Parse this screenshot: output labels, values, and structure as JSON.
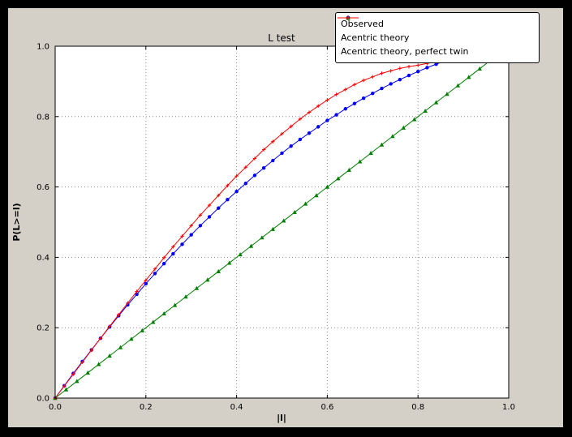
{
  "window": {
    "background_color": "#000000",
    "figure_background_color": "#d4d0c8",
    "plot_background_color": "#ffffff",
    "gridline_color": "#8f8f8f"
  },
  "chart_data": {
    "type": "line",
    "title": "L test",
    "xlabel": "|l|",
    "ylabel": "P(L>=l)",
    "xlim": [
      0,
      1
    ],
    "ylim": [
      0,
      1
    ],
    "xticks": [
      "0.0",
      "0.2",
      "0.4",
      "0.6",
      "0.8",
      "1.0"
    ],
    "yticks": [
      "0.0",
      "0.2",
      "0.4",
      "0.6",
      "0.8",
      "1.0"
    ],
    "grid": true,
    "grid_style": "dotted",
    "legend_position": "top-right",
    "series": [
      {
        "name": "Observed",
        "color": "#0000ff",
        "marker": "circle",
        "x": [
          0,
          0.02,
          0.04,
          0.06,
          0.08,
          0.1,
          0.12,
          0.14,
          0.16,
          0.18,
          0.2,
          0.22,
          0.24,
          0.26,
          0.28,
          0.3,
          0.32,
          0.34,
          0.36,
          0.38,
          0.4,
          0.42,
          0.44,
          0.46,
          0.48,
          0.5,
          0.52,
          0.54,
          0.56,
          0.58,
          0.6,
          0.62,
          0.64,
          0.66,
          0.68,
          0.7,
          0.72,
          0.74,
          0.76,
          0.78,
          0.8,
          0.82,
          0.84,
          0.86
        ],
        "y": [
          0,
          0.035,
          0.07,
          0.104,
          0.137,
          0.17,
          0.202,
          0.234,
          0.265,
          0.295,
          0.325,
          0.354,
          0.382,
          0.41,
          0.437,
          0.464,
          0.49,
          0.515,
          0.54,
          0.564,
          0.587,
          0.61,
          0.633,
          0.654,
          0.675,
          0.696,
          0.716,
          0.735,
          0.753,
          0.771,
          0.789,
          0.805,
          0.822,
          0.837,
          0.852,
          0.866,
          0.88,
          0.893,
          0.905,
          0.917,
          0.928,
          0.939,
          0.949,
          0.958
        ]
      },
      {
        "name": "Acentric theory",
        "color": "#007f00",
        "marker": "triangle",
        "x": [
          0,
          0.024,
          0.048,
          0.072,
          0.096,
          0.12,
          0.144,
          0.168,
          0.192,
          0.216,
          0.24,
          0.264,
          0.288,
          0.312,
          0.336,
          0.36,
          0.384,
          0.408,
          0.432,
          0.456,
          0.48,
          0.504,
          0.528,
          0.552,
          0.576,
          0.6,
          0.624,
          0.648,
          0.672,
          0.696,
          0.72,
          0.744,
          0.768,
          0.792,
          0.816,
          0.84,
          0.864,
          0.888,
          0.912,
          0.936,
          0.96
        ],
        "y": [
          0,
          0.024,
          0.048,
          0.072,
          0.096,
          0.12,
          0.144,
          0.168,
          0.192,
          0.216,
          0.24,
          0.264,
          0.288,
          0.312,
          0.336,
          0.36,
          0.384,
          0.408,
          0.432,
          0.456,
          0.48,
          0.504,
          0.528,
          0.552,
          0.576,
          0.6,
          0.624,
          0.648,
          0.672,
          0.696,
          0.72,
          0.744,
          0.768,
          0.792,
          0.816,
          0.84,
          0.864,
          0.888,
          0.912,
          0.936,
          0.96
        ]
      },
      {
        "name": "Acentric theory, perfect twin",
        "color": "#ff0000",
        "marker": "plus",
        "x": [
          0,
          0.02,
          0.04,
          0.06,
          0.08,
          0.1,
          0.12,
          0.14,
          0.16,
          0.18,
          0.2,
          0.22,
          0.24,
          0.26,
          0.28,
          0.3,
          0.32,
          0.34,
          0.36,
          0.38,
          0.4,
          0.42,
          0.44,
          0.46,
          0.48,
          0.5,
          0.52,
          0.54,
          0.56,
          0.58,
          0.6,
          0.62,
          0.64,
          0.66,
          0.68,
          0.7,
          0.72,
          0.74,
          0.76,
          0.78,
          0.8,
          0.82,
          0.84
        ],
        "y": [
          0,
          0.034,
          0.068,
          0.102,
          0.136,
          0.17,
          0.204,
          0.237,
          0.27,
          0.303,
          0.335,
          0.367,
          0.399,
          0.43,
          0.46,
          0.49,
          0.52,
          0.548,
          0.576,
          0.604,
          0.631,
          0.656,
          0.681,
          0.706,
          0.729,
          0.751,
          0.772,
          0.793,
          0.812,
          0.83,
          0.847,
          0.863,
          0.877,
          0.891,
          0.903,
          0.913,
          0.923,
          0.93,
          0.937,
          0.942,
          0.946,
          0.951,
          0.956
        ]
      }
    ]
  }
}
